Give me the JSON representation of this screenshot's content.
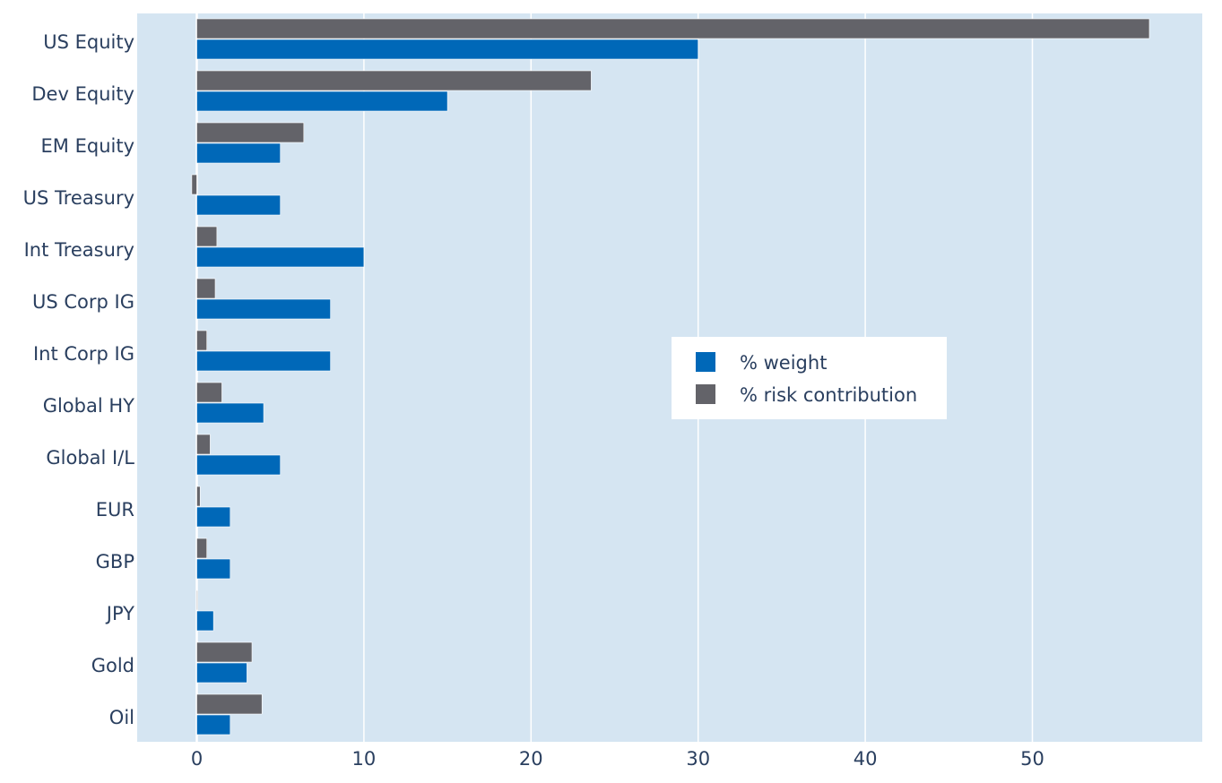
{
  "colors": {
    "plot_bg": "#d5e5f2",
    "grid": "#ffffff",
    "weight": "#0068b8",
    "risk": "#636369",
    "text": "#2a3f5f"
  },
  "legend": {
    "weight_label": "% weight",
    "risk_label": "% risk contribution"
  },
  "chart_data": {
    "type": "bar",
    "orientation": "horizontal",
    "title": "",
    "xlabel": "",
    "ylabel": "",
    "xlim": [
      -3.5,
      60
    ],
    "xticks": [
      0,
      10,
      20,
      30,
      40,
      50
    ],
    "grid": "vertical",
    "legend_position": "center-right",
    "categories": [
      "US Equity",
      "Dev Equity",
      "EM Equity",
      "US Treasury",
      "Int Treasury",
      "US Corp IG",
      "Int Corp IG",
      "Global HY",
      "Global I/L",
      "EUR",
      "GBP",
      "JPY",
      "Gold",
      "Oil"
    ],
    "series": [
      {
        "name": "% weight",
        "color": "#0068b8",
        "values": [
          30,
          15,
          5,
          5,
          10,
          8,
          8,
          4,
          5,
          2,
          2,
          1,
          3,
          2
        ]
      },
      {
        "name": "% risk contribution",
        "color": "#636369",
        "values": [
          57,
          23.6,
          6.4,
          -0.3,
          1.2,
          1.1,
          0.6,
          1.5,
          0.8,
          0.2,
          0.6,
          0.05,
          3.3,
          3.9
        ]
      }
    ]
  }
}
